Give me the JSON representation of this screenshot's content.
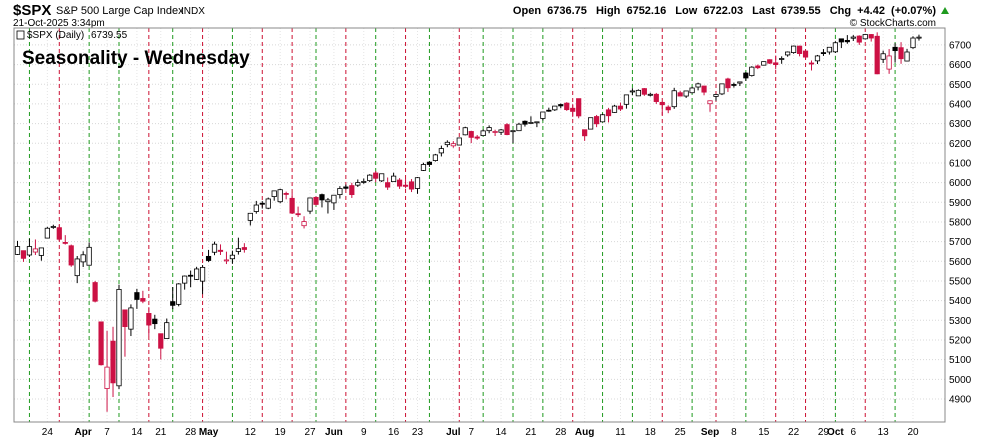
{
  "chart_data": {
    "type": "candlestick",
    "symbol": "$SPX",
    "name": "S&P 500 Large Cap Index",
    "exchange": "INDX",
    "timestamp": "21-Oct-2025 3:34pm",
    "credit": "© StockCharts.com",
    "legend": "$SPX (Daily)",
    "annotation": "Seasonality - Wednesday",
    "annotation_color": "#1a1adb",
    "header_labels": [
      "Open",
      "High",
      "Low",
      "Last",
      "Chg"
    ],
    "change": "+4.42",
    "change_pct": "(+0.07%)",
    "up_color": "#000000",
    "down_color": "#cc1144",
    "grid": true,
    "ylim": [
      4783,
      6786
    ],
    "yticks": [
      4900,
      5000,
      5100,
      5200,
      5300,
      5400,
      5500,
      5600,
      5700,
      5800,
      5900,
      6000,
      6100,
      6200,
      6300,
      6400,
      6500,
      6600,
      6700
    ],
    "categories": [
      null,
      null,
      null,
      null,
      null,
      "24",
      null,
      null,
      null,
      null,
      null,
      "Apr",
      null,
      null,
      null,
      "7",
      null,
      null,
      null,
      null,
      "14",
      null,
      null,
      null,
      "21",
      null,
      null,
      null,
      null,
      "28",
      null,
      null,
      "May",
      null,
      null,
      null,
      null,
      null,
      null,
      "12",
      null,
      null,
      null,
      null,
      "19",
      null,
      null,
      null,
      null,
      "27",
      null,
      null,
      null,
      "Jun",
      null,
      null,
      null,
      null,
      "9",
      null,
      null,
      null,
      null,
      "16",
      null,
      null,
      null,
      "23",
      null,
      null,
      null,
      null,
      null,
      "Jul",
      null,
      null,
      "7",
      null,
      null,
      null,
      null,
      "14",
      null,
      null,
      null,
      null,
      "21",
      null,
      null,
      null,
      null,
      "28",
      null,
      null,
      null,
      "Aug",
      null,
      null,
      null,
      null,
      null,
      "11",
      null,
      null,
      null,
      null,
      "18",
      null,
      null,
      null,
      null,
      "25",
      null,
      null,
      null,
      null,
      "Sep",
      null,
      null,
      null,
      "8",
      null,
      null,
      null,
      null,
      "15",
      null,
      null,
      null,
      null,
      "22",
      null,
      null,
      null,
      null,
      "29",
      null,
      "Oct",
      null,
      null,
      "6",
      null,
      null,
      null,
      null,
      "13",
      null,
      null,
      null,
      null,
      "20",
      null
    ],
    "open": [
      5635,
      5654,
      5632,
      5647,
      5630,
      5718,
      5776,
      5771,
      5696,
      5679,
      5527,
      5597,
      5580,
      5492,
      5292,
      4953,
      5194,
      4967,
      5353,
      5255,
      5441,
      5411,
      5335,
      5306,
      5232,
      5207,
      5395,
      5381,
      5489,
      5529,
      5508,
      5499,
      5625,
      5646,
      5656,
      5606,
      5613,
      5650,
      5670,
      5808,
      5853,
      5895,
      5870,
      5929,
      5903,
      5945,
      5920,
      5842,
      5781,
      5855,
      5925,
      5939,
      5903,
      5897,
      5939,
      5978,
      5985,
      5987,
      6004,
      6010,
      6049,
      6009,
      6000,
      6005,
      6013,
      5987,
      6004,
      5970,
      6062,
      6104,
      6112,
      6151,
      6193,
      6187,
      6191,
      6243,
      6260,
      6232,
      6239,
      6264,
      6255,
      6256,
      6295,
      6260,
      6264,
      6312,
      6304,
      6307,
      6326,
      6368,
      6370,
      6397,
      6404,
      6378,
      6427,
      6269,
      6272,
      6336,
      6309,
      6370,
      6357,
      6389,
      6398,
      6461,
      6441,
      6478,
      6445,
      6449,
      6408,
      6384,
      6386,
      6457,
      6440,
      6457,
      6486,
      6491,
      6401,
      6438,
      6451,
      6527,
      6499,
      6506,
      6557,
      6544,
      6593,
      6597,
      6625,
      6609,
      6627,
      6649,
      6661,
      6694,
      6669,
      6608,
      6619,
      6661,
      6664,
      6665,
      6731,
      6723,
      6734,
      6745,
      6731,
      6753,
      6744,
      6627,
      6577,
      6688,
      6686,
      6618,
      6686,
      6736.75
    ],
    "high": [
      5704,
      5654,
      5715,
      5711,
      5670,
      5775,
      5786,
      5784,
      5733,
      5685,
      5627,
      5651,
      5696,
      5500,
      5292,
      5247,
      5267,
      5481,
      5353,
      5381,
      5460,
      5450,
      5367,
      5328,
      5232,
      5309,
      5469,
      5489,
      5528,
      5553,
      5572,
      5581,
      5658,
      5700,
      5686,
      5649,
      5654,
      5720,
      5692,
      5844,
      5907,
      5906,
      5924,
      5958,
      5969,
      5954,
      5948,
      5878,
      5829,
      5922,
      5930,
      5944,
      5922,
      5937,
      5982,
      5990,
      5999,
      6016,
      6021,
      6043,
      6059,
      6045,
      6026,
      6050,
      6023,
      6018,
      6018,
      6028,
      6101,
      6108,
      6146,
      6188,
      6215,
      6211,
      6228,
      6284,
      6263,
      6242,
      6270,
      6291,
      6269,
      6273,
      6302,
      6265,
      6304,
      6316,
      6337,
      6310,
      6359,
      6381,
      6390,
      6402,
      6409,
      6399,
      6427,
      6269,
      6330,
      6344,
      6350,
      6380,
      6395,
      6407,
      6446,
      6480,
      6474,
      6481,
      6457,
      6456,
      6412,
      6393,
      6482,
      6467,
      6466,
      6487,
      6508,
      6492,
      6418,
      6451,
      6502,
      6533,
      6508,
      6513,
      6562,
      6592,
      6600,
      6616,
      6627,
      6646,
      6642,
      6667,
      6697,
      6696,
      6670,
      6621,
      6649,
      6679,
      6688,
      6719,
      6731,
      6750,
      6750,
      6749,
      6756,
      6755,
      6764,
      6671,
      6679,
      6709,
      6714,
      6680,
      6744,
      6752.16
    ],
    "low": [
      5632,
      5597,
      5622,
      5632,
      5603,
      5718,
      5765,
      5703,
      5685,
      5572,
      5489,
      5571,
      5578,
      5391,
      5070,
      4835,
      4910,
      4950,
      5115,
      5220,
      5358,
      5387,
      5220,
      5255,
      5101,
      5207,
      5357,
      5371,
      5456,
      5468,
      5505,
      5433,
      5597,
      5631,
      5632,
      5586,
      5587,
      5634,
      5644,
      5782,
      5842,
      5868,
      5865,
      5908,
      5895,
      5915,
      5842,
      5825,
      5767,
      5841,
      5883,
      5874,
      5843,
      5861,
      5919,
      5966,
      5922,
      5978,
      5994,
      6003,
      6002,
      6003,
      5963,
      6004,
      5968,
      5971,
      5952,
      5943,
      6059,
      6080,
      6107,
      6133,
      6180,
      6177,
      6191,
      6240,
      6201,
      6217,
      6237,
      6251,
      6237,
      6242,
      6241,
      6201,
      6262,
      6285,
      6304,
      6282,
      6316,
      6360,
      6364,
      6378,
      6365,
      6334,
      6327,
      6212,
      6272,
      6282,
      6309,
      6306,
      6355,
      6364,
      6376,
      6444,
      6441,
      6441,
      6438,
      6400,
      6343,
      6353,
      6375,
      6438,
      6430,
      6453,
      6469,
      6444,
      6360,
      6416,
      6445,
      6461,
      6483,
      6491,
      6517,
      6539,
      6577,
      6595,
      6603,
      6576,
      6604,
      6640,
      6655,
      6642,
      6625,
      6570,
      6603,
      6644,
      6651,
      6659,
      6684,
      6706,
      6720,
      6700,
      6727,
      6717,
      6551,
      6608,
      6553,
      6610,
      6604,
      6616,
      6680,
      6722.03
    ],
    "close": [
      5675,
      5615,
      5675,
      5663,
      5668,
      5768,
      5777,
      5712,
      5693,
      5581,
      5612,
      5633,
      5671,
      5397,
      5074,
      5062,
      4982,
      5457,
      5268,
      5363,
      5406,
      5397,
      5276,
      5283,
      5158,
      5288,
      5376,
      5485,
      5525,
      5529,
      5561,
      5569,
      5604,
      5687,
      5650,
      5607,
      5631,
      5664,
      5660,
      5844,
      5886,
      5892,
      5917,
      5958,
      5964,
      5940,
      5845,
      5842,
      5802,
      5922,
      5889,
      5912,
      5912,
      5936,
      5970,
      5971,
      5939,
      6000,
      6006,
      6038,
      6022,
      6045,
      5977,
      6033,
      5982,
      5981,
      5967,
      6025,
      6092,
      6092,
      6141,
      6173,
      6205,
      6198,
      6227,
      6279,
      6230,
      6226,
      6263,
      6280,
      6260,
      6268,
      6244,
      6264,
      6297,
      6297,
      6306,
      6309,
      6359,
      6363,
      6389,
      6390,
      6371,
      6362,
      6339,
      6238,
      6330,
      6299,
      6345,
      6340,
      6389,
      6374,
      6446,
      6466,
      6469,
      6449,
      6449,
      6412,
      6396,
      6370,
      6467,
      6440,
      6466,
      6481,
      6502,
      6460,
      6416,
      6448,
      6502,
      6482,
      6495,
      6512,
      6532,
      6587,
      6584,
      6615,
      6607,
      6600,
      6631,
      6664,
      6694,
      6656,
      6638,
      6605,
      6644,
      6661,
      6688,
      6711,
      6715,
      6716,
      6740,
      6714,
      6753,
      6735,
      6553,
      6655,
      6644,
      6671,
      6630,
      6664,
      6735,
      6739.55
    ],
    "wednesday_lines": [
      {
        "at": 2,
        "color": "#1f9a1f"
      },
      {
        "at": 7,
        "color": "#cc1133"
      },
      {
        "at": 12,
        "color": "#1f9a1f"
      },
      {
        "at": 17,
        "color": "#1f9a1f"
      },
      {
        "at": 22,
        "color": "#cc1133"
      },
      {
        "at": 26,
        "color": "#1f9a1f"
      },
      {
        "at": 31,
        "color": "#cc1133"
      },
      {
        "at": 36,
        "color": "#1f9a1f"
      },
      {
        "at": 41,
        "color": "#cc1133"
      },
      {
        "at": 46,
        "color": "#cc1133"
      },
      {
        "at": 50,
        "color": "#1f9a1f"
      },
      {
        "at": 55,
        "color": "#cc1133"
      },
      {
        "at": 60,
        "color": "#1f9a1f"
      },
      {
        "at": 65,
        "color": "#cc1133"
      },
      {
        "at": 69,
        "color": "#1f9a1f"
      },
      {
        "at": 74,
        "color": "#cc1133"
      },
      {
        "at": 78,
        "color": "#1f9a1f"
      },
      {
        "at": 83,
        "color": "#1f9a1f"
      },
      {
        "at": 88,
        "color": "#1f9a1f"
      },
      {
        "at": 93,
        "color": "#cc1133"
      },
      {
        "at": 98,
        "color": "#1f9a1f"
      },
      {
        "at": 103,
        "color": "#1f9a1f"
      },
      {
        "at": 108,
        "color": "#cc1133"
      },
      {
        "at": 113,
        "color": "#1f9a1f"
      },
      {
        "at": 117,
        "color": "#cc1133"
      },
      {
        "at": 122,
        "color": "#1f9a1f"
      },
      {
        "at": 127,
        "color": "#cc1133"
      },
      {
        "at": 132,
        "color": "#cc1133"
      },
      {
        "at": 137,
        "color": "#1f9a1f"
      },
      {
        "at": 142,
        "color": "#cc1133"
      },
      {
        "at": 147,
        "color": "#1f9a1f"
      }
    ]
  }
}
